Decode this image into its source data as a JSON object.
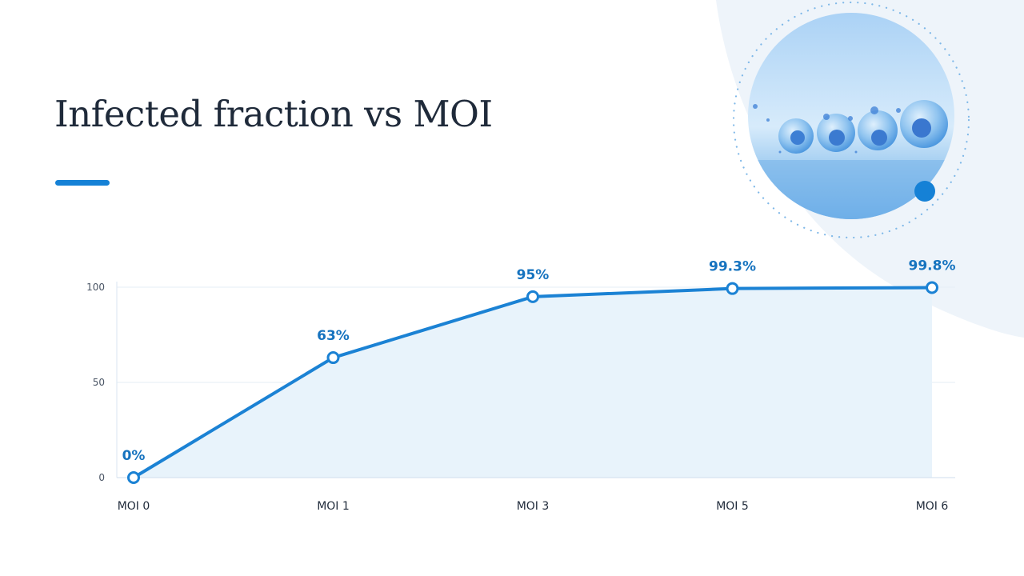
{
  "slide": {
    "title": "Infected fraction vs MOI"
  },
  "colors": {
    "accent": "#1581d6",
    "line": "#1b82d4",
    "area_fill": "#e8f3fb",
    "label": "#1673bf",
    "title": "#1f2a3a",
    "decor_shape": "#eef4fa"
  },
  "decor": {
    "image_icon": "cell-culture-illustration-icon"
  },
  "chart_data": {
    "type": "area",
    "categories": [
      "MOI 0",
      "MOI 1",
      "MOI 3",
      "MOI 5",
      "MOI 6"
    ],
    "series": [
      {
        "values": [
          0,
          63,
          95,
          99.3,
          99.8
        ],
        "labels": [
          "0%",
          "63%",
          "95%",
          "99.3%",
          "99.8%"
        ]
      }
    ],
    "yticks": [
      0,
      50,
      100
    ],
    "ylim": [
      0,
      100
    ],
    "grid": true,
    "legend": "none",
    "xlabel": "",
    "ylabel": ""
  }
}
